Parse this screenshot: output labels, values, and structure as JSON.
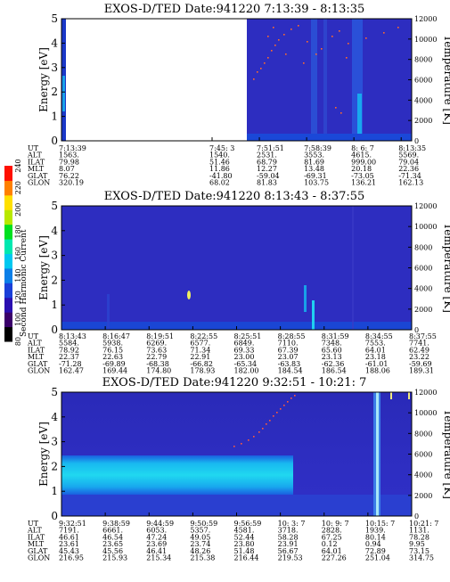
{
  "colorbar": {
    "label": "Second Harmonic Current",
    "ticks": [
      "80",
      "100",
      "120",
      "140",
      "160",
      "180",
      "200",
      "220",
      "240"
    ],
    "colors": [
      "#000000",
      "#3a006a",
      "#2a0fb0",
      "#1a3fd8",
      "#0a7fe8",
      "#00c8f0",
      "#00e8b0",
      "#00e020",
      "#b8e800",
      "#ffe000",
      "#ff8000",
      "#ff1000"
    ]
  },
  "panels": [
    {
      "title": "EXOS-D/TED  Date:941220  7:13:39 - 8:13:35",
      "ylabel": "Energy [eV]",
      "y2label": "Temperature [K]",
      "yticks": [
        "0",
        "1",
        "2",
        "3",
        "4",
        "5"
      ],
      "y2ticks": [
        "0",
        "2000",
        "4000",
        "6000",
        "8000",
        "10000",
        "12000"
      ],
      "row_labels": [
        "UT",
        "ALT",
        "ILAT",
        "MLT",
        "GLAT",
        "GLON"
      ],
      "columns": [
        {
          "pos": 0.0,
          "vals": [
            "7:13:39",
            "1563.",
            "79.98",
            "8.07",
            "76.22",
            "320.19"
          ]
        },
        {
          "pos": 0.43,
          "vals": [
            "7:45: 3",
            "1540.",
            "51.46",
            "11.86",
            "-41.80",
            "68.02"
          ]
        },
        {
          "pos": 0.565,
          "vals": [
            "7:51:51",
            "2531.",
            "68.79",
            "12.27",
            "-59.04",
            "81.83"
          ]
        },
        {
          "pos": 0.7,
          "vals": [
            "7:58:39",
            "3553.",
            "81.69",
            "13.48",
            "-69.31",
            "103.75"
          ]
        },
        {
          "pos": 0.835,
          "vals": [
            "8: 6: 7",
            "4615.",
            "999.00",
            "20.18",
            "-73.05",
            "136.21"
          ]
        },
        {
          "pos": 0.97,
          "vals": [
            "8:13:35",
            "5569.",
            "79.04",
            "22.36",
            "-71.34",
            "162.13"
          ]
        }
      ]
    },
    {
      "title": "EXOS-D/TED  Date:941220  8:13:43 - 8:37:55",
      "ylabel": "Energy [eV]",
      "y2label": "Temperature [K]",
      "yticks": [
        "0",
        "1",
        "2",
        "3",
        "4",
        "5"
      ],
      "y2ticks": [
        "0",
        "2000",
        "4000",
        "6000",
        "8000",
        "10000",
        "12000"
      ],
      "row_labels": [
        "UT",
        "ALT",
        "ILAT",
        "MLT",
        "GLAT",
        "GLON"
      ],
      "columns": [
        {
          "pos": 0.0,
          "vals": [
            "8:13:43",
            "5584.",
            "78.92",
            "22.37",
            "-71.28",
            "162.47"
          ]
        },
        {
          "pos": 0.125,
          "vals": [
            "8:16:47",
            "5938.",
            "76.15",
            "22.63",
            "-69.89",
            "169.44"
          ]
        },
        {
          "pos": 0.25,
          "vals": [
            "8:19:51",
            "6269.",
            "73.63",
            "22.79",
            "-68.38",
            "174.80"
          ]
        },
        {
          "pos": 0.375,
          "vals": [
            "8:22:55",
            "6577.",
            "71.34",
            "22.91",
            "-66.82",
            "178.93"
          ]
        },
        {
          "pos": 0.5,
          "vals": [
            "8:25:51",
            "6849.",
            "69.33",
            "23.00",
            "-65.34",
            "182.00"
          ]
        },
        {
          "pos": 0.625,
          "vals": [
            "8:28:55",
            "7110.",
            "67.39",
            "23.07",
            "-63.83",
            "184.54"
          ]
        },
        {
          "pos": 0.75,
          "vals": [
            "8:31:59",
            "7348.",
            "65.60",
            "23.13",
            "-62.36",
            "186.54"
          ]
        },
        {
          "pos": 0.875,
          "vals": [
            "8:34:55",
            "7553.",
            "64.01",
            "23.18",
            "-61.01",
            "188.06"
          ]
        },
        {
          "pos": 1.0,
          "vals": [
            "8:37:55",
            "7741.",
            "62.49",
            "23.22",
            "-59.69",
            "189.31"
          ]
        }
      ]
    },
    {
      "title": "EXOS-D/TED  Date:941220  9:32:51 - 10:21: 7",
      "ylabel": "Energy [eV]",
      "y2label": "Temperature [K]",
      "yticks": [
        "0",
        "1",
        "2",
        "3",
        "4",
        "5"
      ],
      "y2ticks": [
        "0",
        "2000",
        "4000",
        "6000",
        "8000",
        "10000",
        "12000"
      ],
      "row_labels": [
        "UT",
        "ALT",
        "ILAT",
        "MLT",
        "GLAT",
        "GLON"
      ],
      "columns": [
        {
          "pos": 0.0,
          "vals": [
            "9:32:51",
            "7191.",
            "46.61",
            "23.61",
            "45.43",
            "216.95"
          ]
        },
        {
          "pos": 0.125,
          "vals": [
            "9:38:59",
            "6661.",
            "46.54",
            "23.65",
            "45.56",
            "215.93"
          ]
        },
        {
          "pos": 0.25,
          "vals": [
            "9:44:59",
            "6053.",
            "47.24",
            "23.69",
            "46.41",
            "215.34"
          ]
        },
        {
          "pos": 0.375,
          "vals": [
            "9:50:59",
            "5357.",
            "49.05",
            "23.74",
            "48.26",
            "215.38"
          ]
        },
        {
          "pos": 0.5,
          "vals": [
            "9:56:59",
            "4581.",
            "52.44",
            "23.80",
            "51.48",
            "216.44"
          ]
        },
        {
          "pos": 0.625,
          "vals": [
            "10: 3: 7",
            "3718.",
            "58.28",
            "23.91",
            "56.67",
            "219.53"
          ]
        },
        {
          "pos": 0.75,
          "vals": [
            "10: 9: 7",
            "2828.",
            "67.25",
            "0.12",
            "64.01",
            "227.26"
          ]
        },
        {
          "pos": 0.875,
          "vals": [
            "10:15: 7",
            "1939.",
            "80.14",
            "0.94",
            "72.89",
            "251.04"
          ]
        },
        {
          "pos": 1.0,
          "vals": [
            "10:21: 7",
            "1131.",
            "78.28",
            "9.95",
            "73.15",
            "314.75"
          ]
        }
      ]
    }
  ],
  "chart_data": [
    {
      "type": "heatmap",
      "title": "EXOS-D/TED  Date:941220  7:13:39 - 8:13:35",
      "ylabel": "Energy [eV]",
      "y2label": "Temperature [K]",
      "ylim": [
        0,
        5
      ],
      "y2lim": [
        0,
        12000
      ],
      "x": [
        "7:13:39",
        "7:45: 3",
        "7:51:51",
        "7:58:39",
        "8: 6: 7",
        "8:13:35"
      ],
      "colorbar_label": "Second Harmonic Current",
      "colorbar_range": [
        80,
        240
      ]
    },
    {
      "type": "heatmap",
      "title": "EXOS-D/TED  Date:941220  8:13:43 - 8:37:55",
      "ylabel": "Energy [eV]",
      "y2label": "Temperature [K]",
      "ylim": [
        0,
        5
      ],
      "y2lim": [
        0,
        12000
      ],
      "x": [
        "8:13:43",
        "8:16:47",
        "8:19:51",
        "8:22:55",
        "8:25:51",
        "8:28:55",
        "8:31:59",
        "8:34:55",
        "8:37:55"
      ],
      "colorbar_label": "Second Harmonic Current",
      "colorbar_range": [
        80,
        240
      ]
    },
    {
      "type": "heatmap",
      "title": "EXOS-D/TED  Date:941220  9:32:51 - 10:21: 7",
      "ylabel": "Energy [eV]",
      "y2label": "Temperature [K]",
      "ylim": [
        0,
        5
      ],
      "y2lim": [
        0,
        12000
      ],
      "x": [
        "9:32:51",
        "9:38:59",
        "9:44:59",
        "9:50:59",
        "9:56:59",
        "10: 3: 7",
        "10: 9: 7",
        "10:15: 7",
        "10:21: 7"
      ],
      "colorbar_label": "Second Harmonic Current",
      "colorbar_range": [
        80,
        240
      ]
    }
  ]
}
